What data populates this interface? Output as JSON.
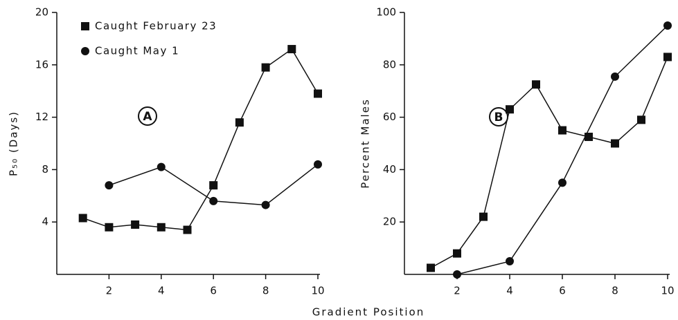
{
  "chart_data": [
    {
      "type": "line",
      "ylabel": "P₅₀ (Days)",
      "annotation": "A",
      "xlim": [
        0,
        10
      ],
      "xticks": [
        2,
        4,
        6,
        8,
        10
      ],
      "ylim": [
        0,
        20
      ],
      "yticks": [
        4,
        8,
        12,
        16,
        20
      ],
      "series": [
        {
          "name": "Caught February 23",
          "color": "#111111",
          "marker": "square",
          "x": [
            1,
            2,
            3,
            4,
            5,
            6,
            7,
            8,
            9,
            10
          ],
          "values": [
            4.3,
            3.6,
            3.8,
            3.6,
            3.4,
            6.8,
            11.6,
            15.8,
            17.2,
            13.8
          ]
        },
        {
          "name": "Caught May 1",
          "color": "#111111",
          "marker": "circle",
          "x": [
            2,
            4,
            6,
            8,
            10
          ],
          "values": [
            6.8,
            8.2,
            5.6,
            5.3,
            8.4
          ]
        }
      ]
    },
    {
      "type": "line",
      "ylabel": "Percent Males",
      "annotation": "B",
      "xlim": [
        0,
        10
      ],
      "xticks": [
        2,
        4,
        6,
        8,
        10
      ],
      "ylim": [
        0,
        100
      ],
      "yticks": [
        20,
        40,
        60,
        80,
        100
      ],
      "series": [
        {
          "color": "#111111",
          "marker": "square",
          "x": [
            1,
            2,
            3,
            4,
            5,
            6,
            7,
            8,
            9,
            10
          ],
          "values": [
            2.5,
            8,
            22,
            63,
            72.5,
            55,
            52.5,
            50,
            59,
            83
          ]
        },
        {
          "color": "#111111",
          "marker": "circle",
          "x": [
            2,
            4,
            6,
            8,
            10
          ],
          "values": [
            0,
            5,
            35,
            75.5,
            95
          ]
        }
      ]
    }
  ],
  "xlabel": "Gradient Position"
}
